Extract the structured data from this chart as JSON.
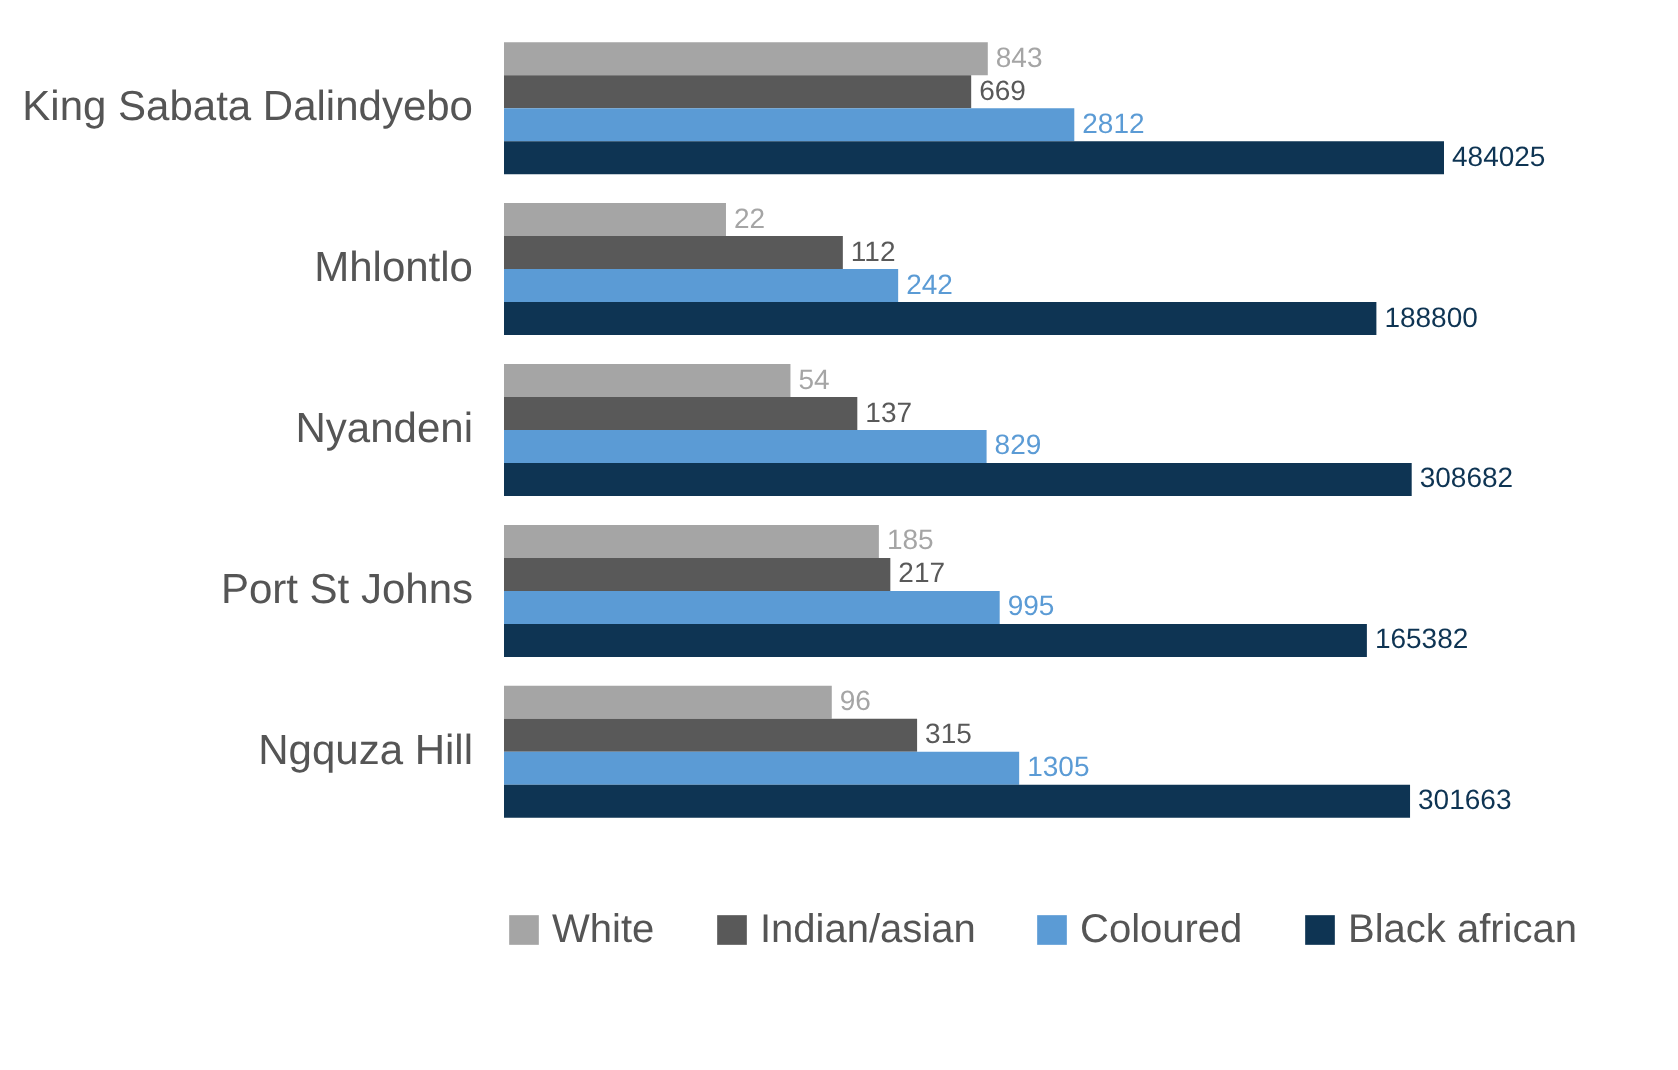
{
  "chart_data": {
    "type": "bar",
    "orientation": "horizontal",
    "categories": [
      "King Sabata Dalindyebo",
      "Mhlontlo",
      "Nyandeni",
      "Port St Johns",
      "Ngquza Hill"
    ],
    "series": [
      {
        "name": "White",
        "color": "#a5a5a5",
        "values": [
          843,
          22,
          54,
          185,
          96
        ]
      },
      {
        "name": "Indian/asian",
        "color": "#595959",
        "values": [
          669,
          112,
          137,
          217,
          315
        ]
      },
      {
        "name": "Coloured",
        "color": "#5b9bd5",
        "values": [
          2812,
          242,
          829,
          995,
          1305
        ]
      },
      {
        "name": "Black african",
        "color": "#0e3453",
        "values": [
          484025,
          188800,
          308682,
          165382,
          301663
        ]
      }
    ],
    "log": "x",
    "xlim": [
      1,
      484025
    ],
    "data_labels": true,
    "legend": "bottom"
  }
}
